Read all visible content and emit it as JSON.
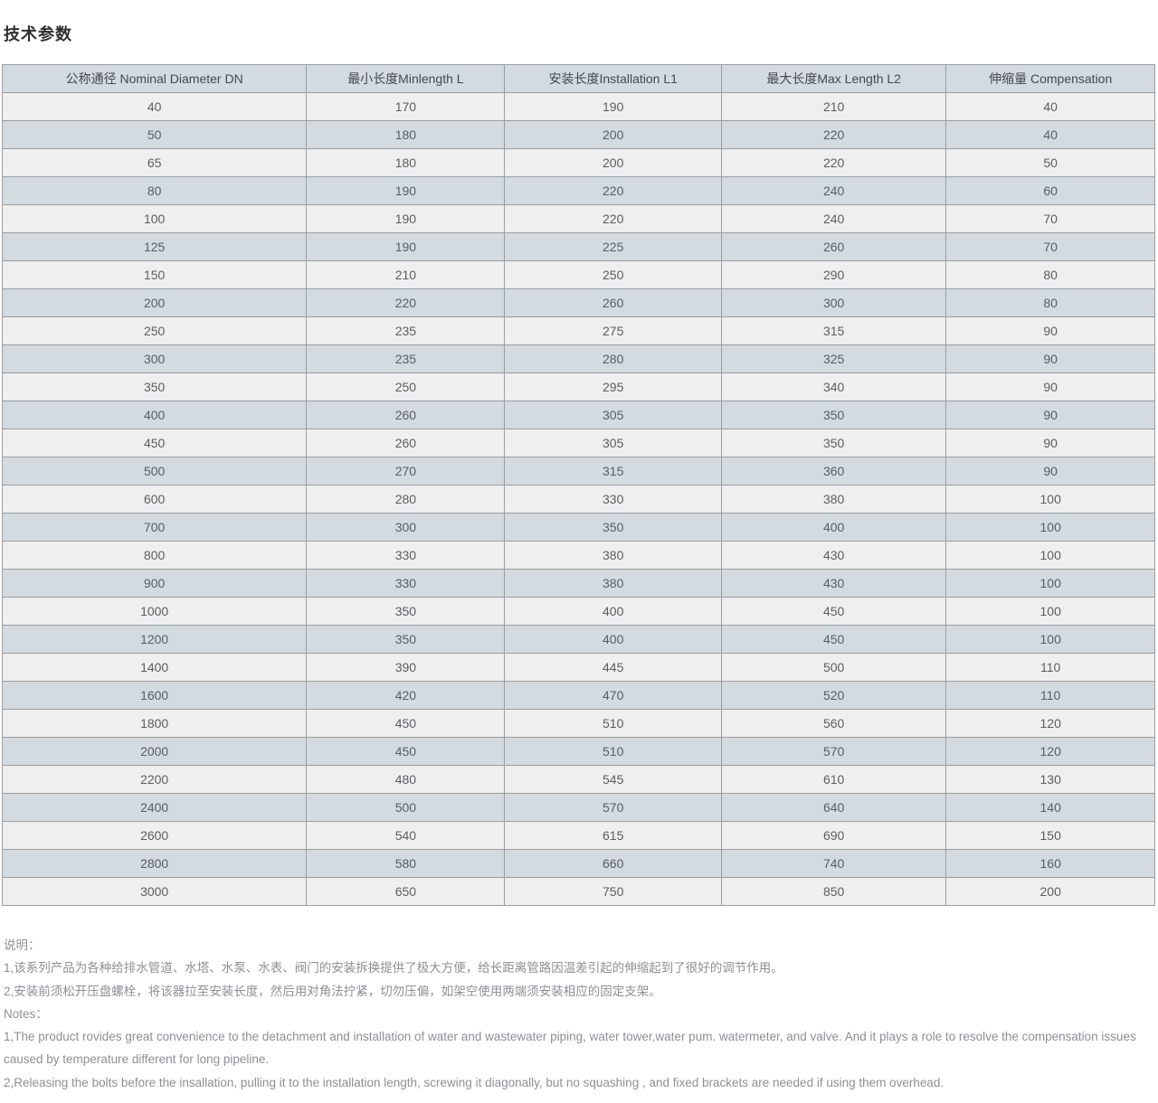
{
  "page": {
    "title": "技术参数"
  },
  "table": {
    "columns": [
      "公称通径 Nominal Diameter DN",
      "最小长度Minlength L",
      "安装长度Installation L1",
      "最大长度Max Length L2",
      "伸缩量 Compensation"
    ],
    "rows": [
      [
        "40",
        "170",
        "190",
        "210",
        "40"
      ],
      [
        "50",
        "180",
        "200",
        "220",
        "40"
      ],
      [
        "65",
        "180",
        "200",
        "220",
        "50"
      ],
      [
        "80",
        "190",
        "220",
        "240",
        "60"
      ],
      [
        "100",
        "190",
        "220",
        "240",
        "70"
      ],
      [
        "125",
        "190",
        "225",
        "260",
        "70"
      ],
      [
        "150",
        "210",
        "250",
        "290",
        "80"
      ],
      [
        "200",
        "220",
        "260",
        "300",
        "80"
      ],
      [
        "250",
        "235",
        "275",
        "315",
        "90"
      ],
      [
        "300",
        "235",
        "280",
        "325",
        "90"
      ],
      [
        "350",
        "250",
        "295",
        "340",
        "90"
      ],
      [
        "400",
        "260",
        "305",
        "350",
        "90"
      ],
      [
        "450",
        "260",
        "305",
        "350",
        "90"
      ],
      [
        "500",
        "270",
        "315",
        "360",
        "90"
      ],
      [
        "600",
        "280",
        "330",
        "380",
        "100"
      ],
      [
        "700",
        "300",
        "350",
        "400",
        "100"
      ],
      [
        "800",
        "330",
        "380",
        "430",
        "100"
      ],
      [
        "900",
        "330",
        "380",
        "430",
        "100"
      ],
      [
        "1000",
        "350",
        "400",
        "450",
        "100"
      ],
      [
        "1200",
        "350",
        "400",
        "450",
        "100"
      ],
      [
        "1400",
        "390",
        "445",
        "500",
        "110"
      ],
      [
        "1600",
        "420",
        "470",
        "520",
        "110"
      ],
      [
        "1800",
        "450",
        "510",
        "560",
        "120"
      ],
      [
        "2000",
        "450",
        "510",
        "570",
        "120"
      ],
      [
        "2200",
        "480",
        "545",
        "610",
        "130"
      ],
      [
        "2400",
        "500",
        "570",
        "640",
        "140"
      ],
      [
        "2600",
        "540",
        "615",
        "690",
        "150"
      ],
      [
        "2800",
        "580",
        "660",
        "740",
        "160"
      ],
      [
        "3000",
        "650",
        "750",
        "850",
        "200"
      ]
    ]
  },
  "notes": {
    "cn_heading": "说明：",
    "cn_items": [
      "1,该系列产品为各种给排水管道、水塔、水泵、水表、阀门的安装拆换提供了极大方便，给长距离管路因温差引起的伸缩起到了很好的调节作用。",
      "2,安装前须松开压盘螺栓，将该器拉至安装长度，然后用对角法拧紧，切勿压偏，如架空使用两端须安装相应的固定支架。"
    ],
    "en_heading": "Notes：",
    "en_items": [
      "1,The product rovides great convenience to the detachment and installation of water and wastewater piping, water tower,water pum. watermeter, and valve. And it plays a role to resolve the compensation issues caused by temperature different for long pipeline.",
      "2,Releasing the bolts before the insallation, pulling it to the installation length, screwing it diagonally, but no squashing , and fixed brackets are needed if using them overhead."
    ]
  },
  "colors": {
    "header_bg": "#d3dae0",
    "row_odd_bg": "#efefef",
    "row_even_bg": "#d3dae0",
    "border": "#9d9d9d",
    "cell_text": "#5a5e62",
    "notes_text": "#8c9094",
    "title_text": "#2f2f2f"
  }
}
